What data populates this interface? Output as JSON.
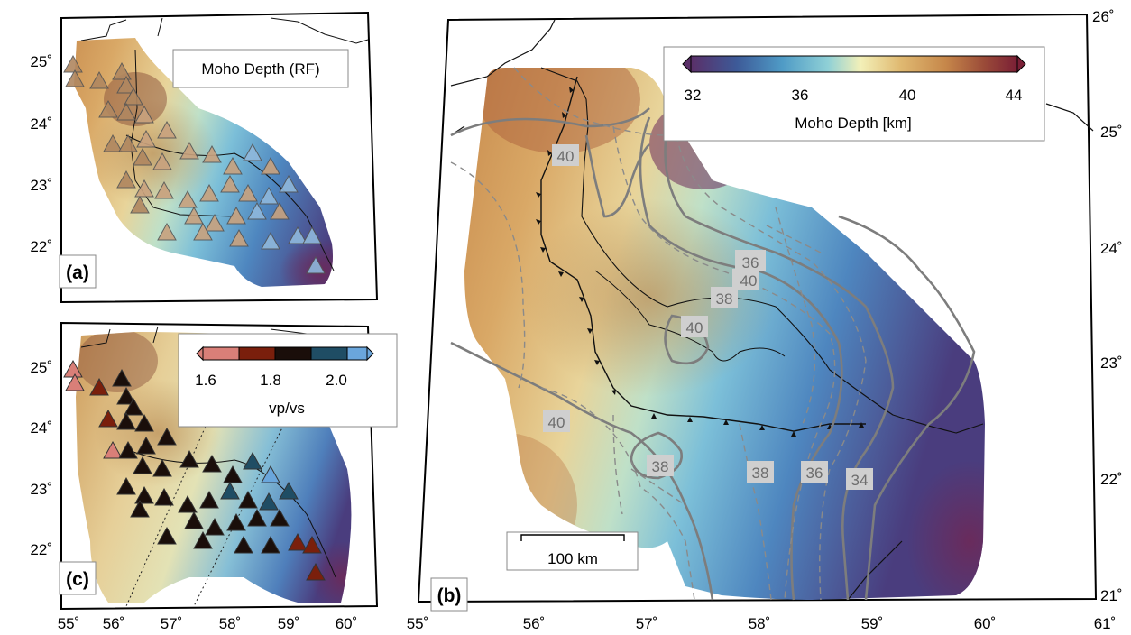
{
  "colors": {
    "moho_cpt": [
      "#5a2f68",
      "#3d5a98",
      "#4f9bc6",
      "#8fd0d6",
      "#f3f0b8",
      "#e0ba72",
      "#c6874a",
      "#9a4a38",
      "#7a1f36"
    ],
    "vpvs_cpt": [
      "#d97f78",
      "#7a1f0c",
      "#1a0e0a",
      "#1f4d64",
      "#6aa6dc"
    ],
    "triangle_light": "#c9a27e",
    "triangle_dark": "#1a100c",
    "triangle_blue": "#78b4e0",
    "contour": "#7d7d7d",
    "fault": "#111111"
  },
  "panels": {
    "a": {
      "label": "(a)",
      "title": "Moho Depth (RF)",
      "lat_ticks": [
        "25˚",
        "24˚",
        "23˚",
        "22˚"
      ]
    },
    "b": {
      "label": "(b)",
      "scalebar": "100 km",
      "lat_ticks": [
        "26˚",
        "25˚",
        "24˚",
        "23˚",
        "22˚",
        "21˚"
      ],
      "lon_ticks": [
        "55˚",
        "56˚",
        "57˚",
        "58˚",
        "59˚",
        "60˚",
        "61˚"
      ],
      "colorbar": {
        "ticks": [
          "32",
          "36",
          "40",
          "44"
        ],
        "label": "Moho Depth [km]"
      },
      "contour_labels": [
        "40",
        "40",
        "40",
        "40",
        "38",
        "38",
        "38",
        "36",
        "36",
        "34"
      ]
    },
    "c": {
      "label": "(c)",
      "lat_ticks": [
        "25˚",
        "24˚",
        "23˚",
        "22˚"
      ],
      "lon_ticks": [
        "55˚",
        "56˚",
        "57˚",
        "58˚",
        "59˚",
        "60˚"
      ],
      "colorbar": {
        "ticks": [
          "1.6",
          "1.8",
          "2.0"
        ],
        "label": "vp/vs"
      }
    }
  }
}
